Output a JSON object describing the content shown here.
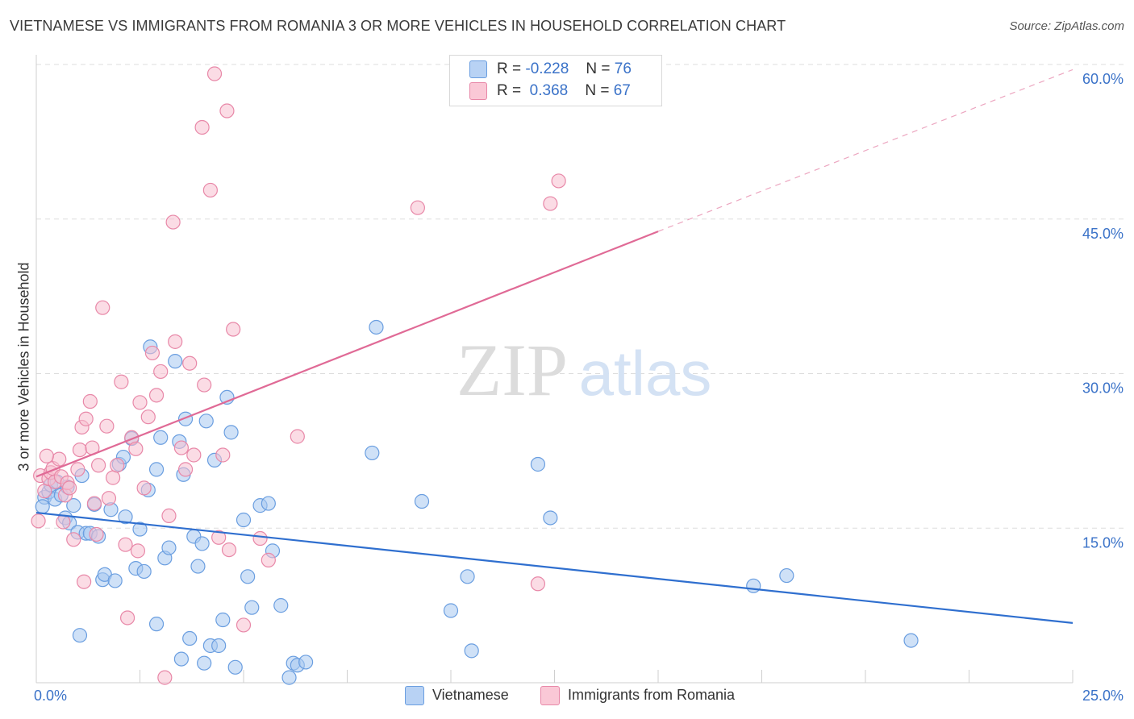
{
  "chart_data": {
    "type": "scatter",
    "title": "VIETNAMESE VS IMMIGRANTS FROM ROMANIA 3 OR MORE VEHICLES IN HOUSEHOLD CORRELATION CHART",
    "source": "Source: ZipAtlas.com",
    "xlabel": "",
    "ylabel": "3 or more Vehicles in Household",
    "xlim": [
      0,
      25
    ],
    "ylim": [
      0,
      60
    ],
    "x_tick_labels": [
      "0.0%",
      "25.0%"
    ],
    "y_ticks": [
      15,
      30,
      45,
      60
    ],
    "y_tick_labels": [
      "15.0%",
      "30.0%",
      "45.0%",
      "60.0%"
    ],
    "watermark": {
      "zip": "ZIP",
      "atlas": "atlas"
    },
    "legend_stats": [
      {
        "r_label": "R =",
        "r_value": "-0.228",
        "n_label": "N =",
        "n_value": "76"
      },
      {
        "r_label": "R =",
        "r_value": "0.368",
        "n_label": "N =",
        "n_value": "67"
      }
    ],
    "series": [
      {
        "name": "Vietnamese",
        "color": "#a8c8f0",
        "edge": "#6a9ee0",
        "line_color": "#2f6fcf",
        "trend": {
          "x0": 0,
          "y0": 16.5,
          "x1": 25,
          "y1": 5.8
        },
        "points": [
          [
            0.2,
            18.0
          ],
          [
            0.3,
            18.5
          ],
          [
            0.35,
            19.2
          ],
          [
            0.45,
            17.8
          ],
          [
            0.5,
            19.5
          ],
          [
            0.6,
            18.2
          ],
          [
            0.7,
            16.0
          ],
          [
            0.75,
            19.0
          ],
          [
            0.8,
            15.5
          ],
          [
            0.9,
            17.2
          ],
          [
            1.0,
            14.6
          ],
          [
            1.1,
            20.1
          ],
          [
            1.2,
            14.5
          ],
          [
            1.3,
            14.5
          ],
          [
            1.4,
            17.3
          ],
          [
            1.5,
            14.2
          ],
          [
            1.6,
            10.0
          ],
          [
            1.65,
            10.5
          ],
          [
            1.8,
            16.8
          ],
          [
            1.9,
            9.9
          ],
          [
            2.0,
            21.2
          ],
          [
            2.1,
            21.9
          ],
          [
            2.15,
            16.1
          ],
          [
            2.3,
            23.7
          ],
          [
            2.4,
            11.1
          ],
          [
            2.5,
            14.9
          ],
          [
            2.6,
            10.8
          ],
          [
            2.7,
            18.7
          ],
          [
            2.75,
            32.6
          ],
          [
            2.9,
            20.7
          ],
          [
            3.0,
            23.8
          ],
          [
            3.1,
            12.1
          ],
          [
            3.2,
            13.1
          ],
          [
            3.35,
            31.2
          ],
          [
            3.45,
            23.4
          ],
          [
            3.55,
            20.2
          ],
          [
            3.6,
            25.6
          ],
          [
            3.8,
            14.2
          ],
          [
            3.9,
            11.3
          ],
          [
            4.0,
            13.5
          ],
          [
            4.1,
            25.4
          ],
          [
            4.3,
            21.6
          ],
          [
            4.5,
            6.1
          ],
          [
            4.6,
            27.7
          ],
          [
            4.7,
            24.3
          ],
          [
            5.0,
            15.8
          ],
          [
            5.1,
            10.3
          ],
          [
            5.2,
            7.3
          ],
          [
            5.4,
            17.2
          ],
          [
            5.6,
            17.4
          ],
          [
            5.7,
            12.8
          ],
          [
            5.9,
            7.5
          ],
          [
            6.1,
            0.5
          ],
          [
            6.2,
            1.9
          ],
          [
            6.3,
            1.7
          ],
          [
            6.5,
            2.0
          ],
          [
            3.7,
            4.3
          ],
          [
            4.2,
            3.6
          ],
          [
            4.4,
            3.6
          ],
          [
            3.5,
            2.3
          ],
          [
            2.9,
            5.7
          ],
          [
            1.05,
            4.6
          ],
          [
            4.05,
            1.9
          ],
          [
            4.8,
            1.5
          ],
          [
            8.1,
            22.3
          ],
          [
            8.2,
            34.5
          ],
          [
            9.3,
            17.6
          ],
          [
            10.0,
            7.0
          ],
          [
            10.4,
            10.3
          ],
          [
            10.5,
            3.1
          ],
          [
            12.1,
            21.2
          ],
          [
            12.4,
            16.0
          ],
          [
            17.3,
            9.4
          ],
          [
            18.1,
            10.4
          ],
          [
            21.1,
            4.1
          ],
          [
            0.15,
            17.1
          ]
        ]
      },
      {
        "name": "Immigrants from Romania",
        "color": "#f8c0d0",
        "edge": "#e888a8",
        "line_color": "#e06a96",
        "trend": {
          "x0": 0,
          "y0": 20.0,
          "x1": 15,
          "y1": 43.8
        },
        "trend_dashed": {
          "x0": 15,
          "y0": 43.8,
          "x1": 25,
          "y1": 59.5
        },
        "points": [
          [
            0.1,
            20.1
          ],
          [
            0.2,
            18.6
          ],
          [
            0.3,
            19.8
          ],
          [
            0.35,
            20.4
          ],
          [
            0.4,
            20.8
          ],
          [
            0.45,
            19.5
          ],
          [
            0.55,
            21.7
          ],
          [
            0.6,
            20.0
          ],
          [
            0.7,
            18.2
          ],
          [
            0.75,
            19.4
          ],
          [
            0.8,
            18.9
          ],
          [
            0.9,
            13.9
          ],
          [
            1.0,
            20.7
          ],
          [
            1.05,
            22.6
          ],
          [
            1.1,
            24.8
          ],
          [
            1.15,
            9.8
          ],
          [
            1.2,
            25.6
          ],
          [
            1.3,
            27.3
          ],
          [
            1.35,
            22.8
          ],
          [
            1.4,
            17.4
          ],
          [
            1.5,
            21.1
          ],
          [
            1.6,
            36.4
          ],
          [
            1.7,
            24.9
          ],
          [
            1.75,
            17.9
          ],
          [
            1.85,
            19.9
          ],
          [
            1.95,
            21.1
          ],
          [
            2.05,
            29.2
          ],
          [
            2.15,
            13.4
          ],
          [
            2.2,
            6.3
          ],
          [
            2.3,
            23.8
          ],
          [
            2.4,
            22.7
          ],
          [
            2.45,
            12.8
          ],
          [
            2.5,
            27.2
          ],
          [
            2.6,
            18.9
          ],
          [
            2.7,
            25.8
          ],
          [
            2.8,
            32.0
          ],
          [
            2.9,
            27.9
          ],
          [
            3.0,
            30.2
          ],
          [
            3.1,
            0.5
          ],
          [
            3.2,
            16.2
          ],
          [
            3.3,
            44.7
          ],
          [
            3.35,
            33.1
          ],
          [
            3.5,
            22.8
          ],
          [
            3.6,
            20.7
          ],
          [
            3.7,
            31.0
          ],
          [
            3.8,
            22.1
          ],
          [
            4.0,
            53.9
          ],
          [
            4.05,
            28.9
          ],
          [
            4.2,
            47.8
          ],
          [
            4.3,
            59.1
          ],
          [
            4.4,
            14.1
          ],
          [
            4.5,
            22.1
          ],
          [
            4.6,
            55.5
          ],
          [
            4.65,
            12.9
          ],
          [
            4.75,
            34.3
          ],
          [
            5.0,
            5.6
          ],
          [
            5.4,
            14.0
          ],
          [
            5.6,
            11.9
          ],
          [
            6.3,
            23.9
          ],
          [
            9.2,
            46.1
          ],
          [
            12.1,
            9.6
          ],
          [
            12.4,
            46.5
          ],
          [
            12.6,
            48.7
          ],
          [
            0.05,
            15.7
          ],
          [
            0.25,
            22.0
          ],
          [
            0.65,
            15.6
          ],
          [
            1.45,
            14.4
          ]
        ]
      }
    ]
  }
}
